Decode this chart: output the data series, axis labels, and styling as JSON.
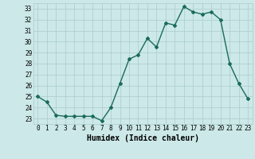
{
  "x": [
    0,
    1,
    2,
    3,
    4,
    5,
    6,
    7,
    8,
    9,
    10,
    11,
    12,
    13,
    14,
    15,
    16,
    17,
    18,
    19,
    20,
    21,
    22,
    23
  ],
  "y": [
    25,
    24.5,
    23.3,
    23.2,
    23.2,
    23.2,
    23.2,
    22.8,
    24.0,
    26.2,
    28.4,
    28.8,
    30.3,
    29.5,
    31.7,
    31.5,
    33.2,
    32.7,
    32.5,
    32.7,
    32.0,
    28.0,
    26.2,
    24.8
  ],
  "xlabel": "Humidex (Indice chaleur)",
  "xlim": [
    -0.5,
    23.5
  ],
  "ylim": [
    22.5,
    33.5
  ],
  "yticks": [
    23,
    24,
    25,
    26,
    27,
    28,
    29,
    30,
    31,
    32,
    33
  ],
  "xticks": [
    0,
    1,
    2,
    3,
    4,
    5,
    6,
    7,
    8,
    9,
    10,
    11,
    12,
    13,
    14,
    15,
    16,
    17,
    18,
    19,
    20,
    21,
    22,
    23
  ],
  "line_color": "#1a6b5a",
  "marker": "D",
  "marker_size": 2.0,
  "line_width": 1.0,
  "bg_color": "#cce8e8",
  "grid_color": "#aacccc",
  "label_fontsize": 7.0,
  "tick_fontsize": 5.5
}
